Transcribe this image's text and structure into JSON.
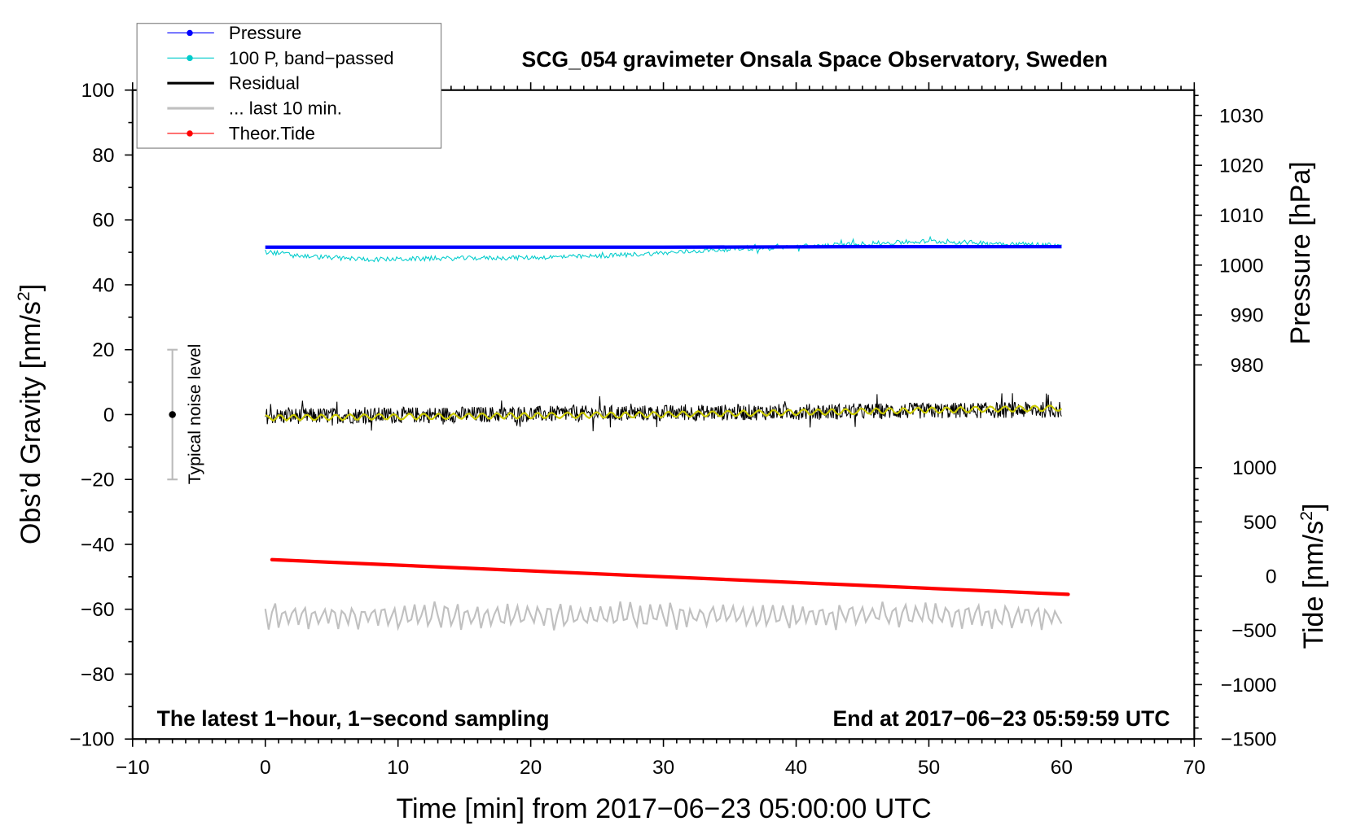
{
  "chart_data": {
    "type": "line",
    "title": "SCG_054 gravimeter Onsala Space Observatory, Sweden",
    "xlabel": "Time [min] from 2017−06−23 05:00:00 UTC",
    "ylabel": "Obs’d Gravity [nm/s",
    "ylabel_sup": "2",
    "ylabel_end": "]",
    "y2label": "Pressure [hPa]",
    "y3label": "Tide [nm/s",
    "y3label_sup": "2",
    "y3label_end": "]",
    "xlim": [
      -10,
      70
    ],
    "ylim": [
      -100,
      100
    ],
    "pressure_lim": [
      976.4,
      1036.5
    ],
    "tide_lim": [
      -1500,
      1000
    ],
    "xticks": [
      "−10",
      "0",
      "10",
      "20",
      "30",
      "40",
      "50",
      "60",
      "70"
    ],
    "yticks": [
      "100",
      "80",
      "60",
      "40",
      "20",
      "0",
      "−20",
      "−40",
      "−60",
      "−80",
      "−100"
    ],
    "pressure_ticks": [
      "1030",
      "1020",
      "1010",
      "1000",
      "990",
      "980"
    ],
    "tide_ticks": [
      "1000",
      "500",
      "0",
      "−500",
      "−1000",
      "−1500"
    ],
    "annotation_left": "The latest 1−hour, 1−second sampling",
    "annotation_right": "End at 2017−06−23 05:59:59 UTC",
    "noise_label": "Typical noise level",
    "noise_bar": {
      "x": -7,
      "center": 0,
      "low": -20,
      "high": 20
    },
    "legend": {
      "position": "top-left",
      "entries": [
        {
          "label": "Pressure",
          "color": "#0000ff",
          "marker": true
        },
        {
          "label": "100 P, band−passed",
          "color": "#00cccc",
          "marker": true
        },
        {
          "label": "Residual",
          "color": "#000000",
          "marker": false
        },
        {
          "label": "... last 10 min.",
          "color": "#c0c0c0",
          "marker": false
        },
        {
          "label": "Theor.Tide",
          "color": "#ff0000",
          "marker": true
        }
      ]
    },
    "series": [
      {
        "name": "Pressure",
        "axis": "pressure_hPa",
        "color": "#0000ff",
        "x": [
          0,
          30,
          45,
          60
        ],
        "values": [
          1003.6,
          1003.6,
          1003.7,
          1003.7
        ]
      },
      {
        "name": "100 P, band-passed",
        "axis": "gravity",
        "color": "#00cccc",
        "x": [
          0,
          3,
          8,
          15,
          20,
          25,
          30,
          35,
          40,
          45,
          50,
          55,
          60
        ],
        "values": [
          50.2,
          48.8,
          47.8,
          48.2,
          48.4,
          48.8,
          49.8,
          51.0,
          51.8,
          52.6,
          53.4,
          52.8,
          52.2
        ],
        "noise": 0.7
      },
      {
        "name": "Residual",
        "axis": "gravity",
        "color": "#000000",
        "x": [
          0,
          60
        ],
        "values": [
          -0.5,
          1.5
        ],
        "noise": 2.5
      },
      {
        "name": "Residual smoothed",
        "axis": "gravity",
        "color": "#cccc00",
        "x": [
          0,
          30,
          60
        ],
        "values": [
          -1,
          0,
          2
        ]
      },
      {
        "name": "... last 10 min.",
        "axis": "gravity",
        "color": "#c0c0c0",
        "x": [
          0,
          60
        ],
        "values": [
          -62,
          -62
        ],
        "noise": 3.5
      },
      {
        "name": "Theor.Tide",
        "axis": "tide",
        "color": "#ff0000",
        "x": [
          0.5,
          60.5
        ],
        "values": [
          152,
          -168
        ]
      }
    ]
  }
}
